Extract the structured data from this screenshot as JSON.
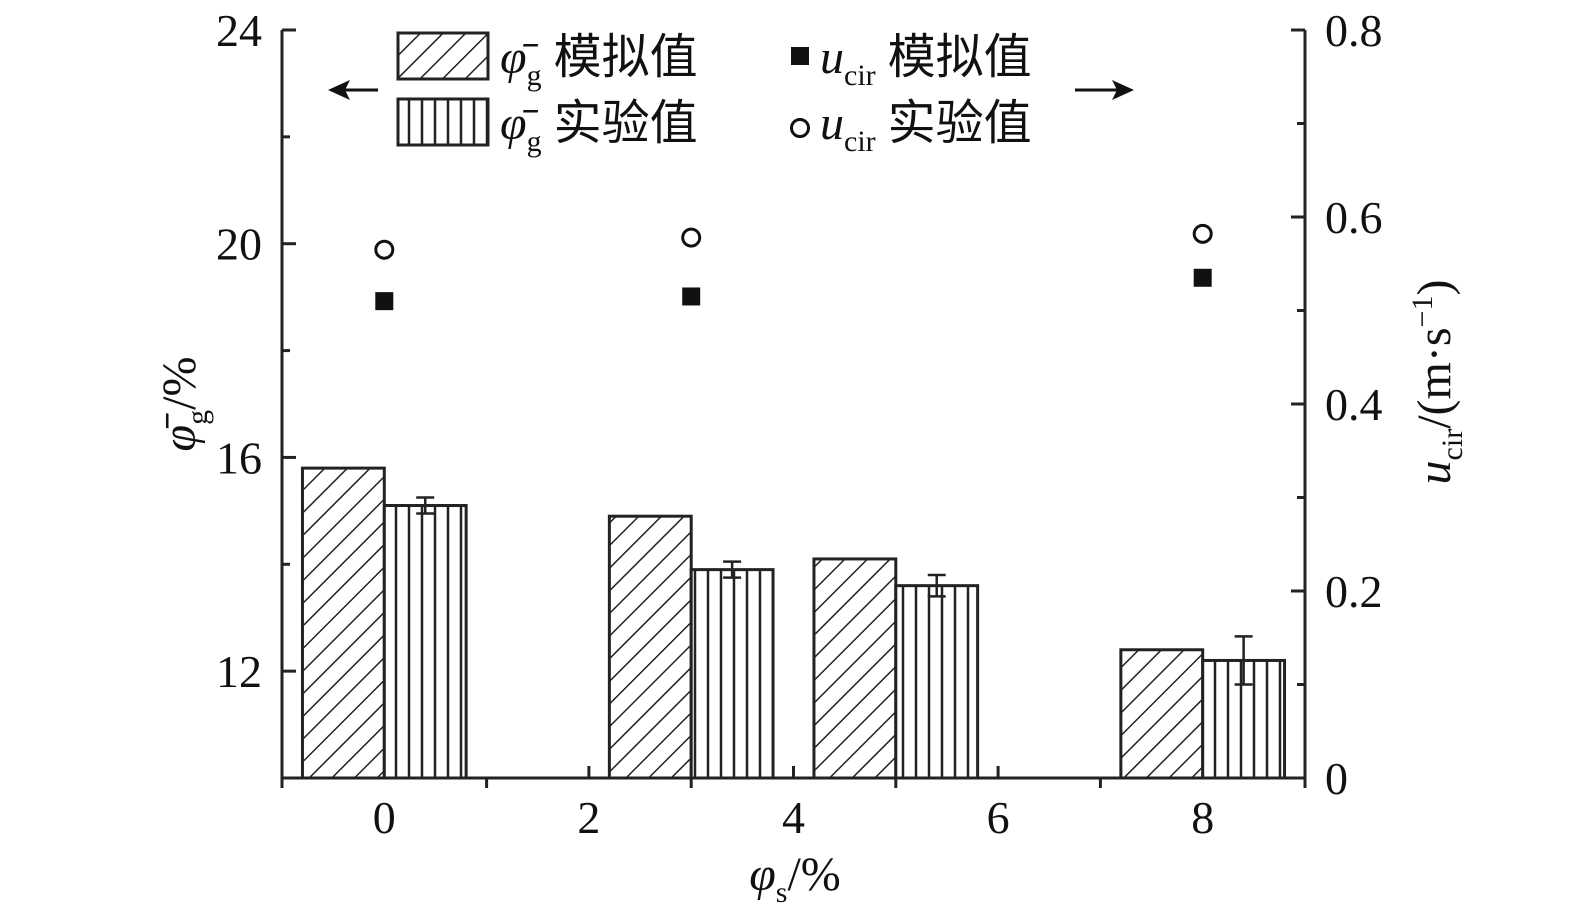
{
  "chart_data": {
    "type": "bar",
    "x_values": [
      0,
      3,
      5,
      8
    ],
    "xlim": [
      -1,
      9
    ],
    "x_ticks": [
      "0",
      "2",
      "4",
      "6",
      "8"
    ],
    "xlabel": {
      "main": "φ",
      "sub": "s",
      "unit": "/%"
    },
    "left_axis": {
      "ylim": [
        10,
        24
      ],
      "ticks": [
        "12",
        "16",
        "20",
        "24"
      ],
      "label": {
        "main": "φ̄",
        "sub": "g",
        "unit": "/%"
      }
    },
    "right_axis": {
      "ylim": [
        0,
        0.8
      ],
      "ticks": [
        "0",
        "0.2",
        "0.4",
        "0.6",
        "0.8"
      ],
      "label": {
        "main": "u",
        "sub": "cir",
        "unit": "/(m·s",
        "sup": "−1",
        "close": ")"
      }
    },
    "series": [
      {
        "name": "φ̄g 模拟值",
        "axis": "left",
        "kind": "bar",
        "pattern": "diagonal",
        "values": [
          15.8,
          14.9,
          14.1,
          12.4
        ]
      },
      {
        "name": "φ̄g 实验值",
        "axis": "left",
        "kind": "bar",
        "pattern": "vertical",
        "values": [
          15.1,
          13.9,
          13.6,
          12.2
        ],
        "errors": [
          0.15,
          0.15,
          0.2,
          0.45
        ]
      },
      {
        "name": "ucir 模拟值",
        "axis": "right",
        "kind": "scatter",
        "marker": "filled-square",
        "values": [
          0.51,
          0.515,
          0.535
        ]
      },
      {
        "name": "ucir 实验值",
        "axis": "right",
        "kind": "scatter",
        "marker": "open-circle",
        "values": [
          0.565,
          0.578,
          0.582
        ]
      }
    ],
    "scatter_x": [
      0,
      3,
      8
    ],
    "legend": {
      "position": "top-center",
      "items": [
        {
          "sym": "φ̄",
          "sub": "g",
          "text": "模拟值"
        },
        {
          "sym": "u",
          "sub": "cir",
          "text": "模拟值"
        },
        {
          "sym": "φ̄",
          "sub": "g",
          "text": "实验值"
        },
        {
          "sym": "u",
          "sub": "cir",
          "text": "实验值"
        }
      ]
    },
    "grid": false
  }
}
